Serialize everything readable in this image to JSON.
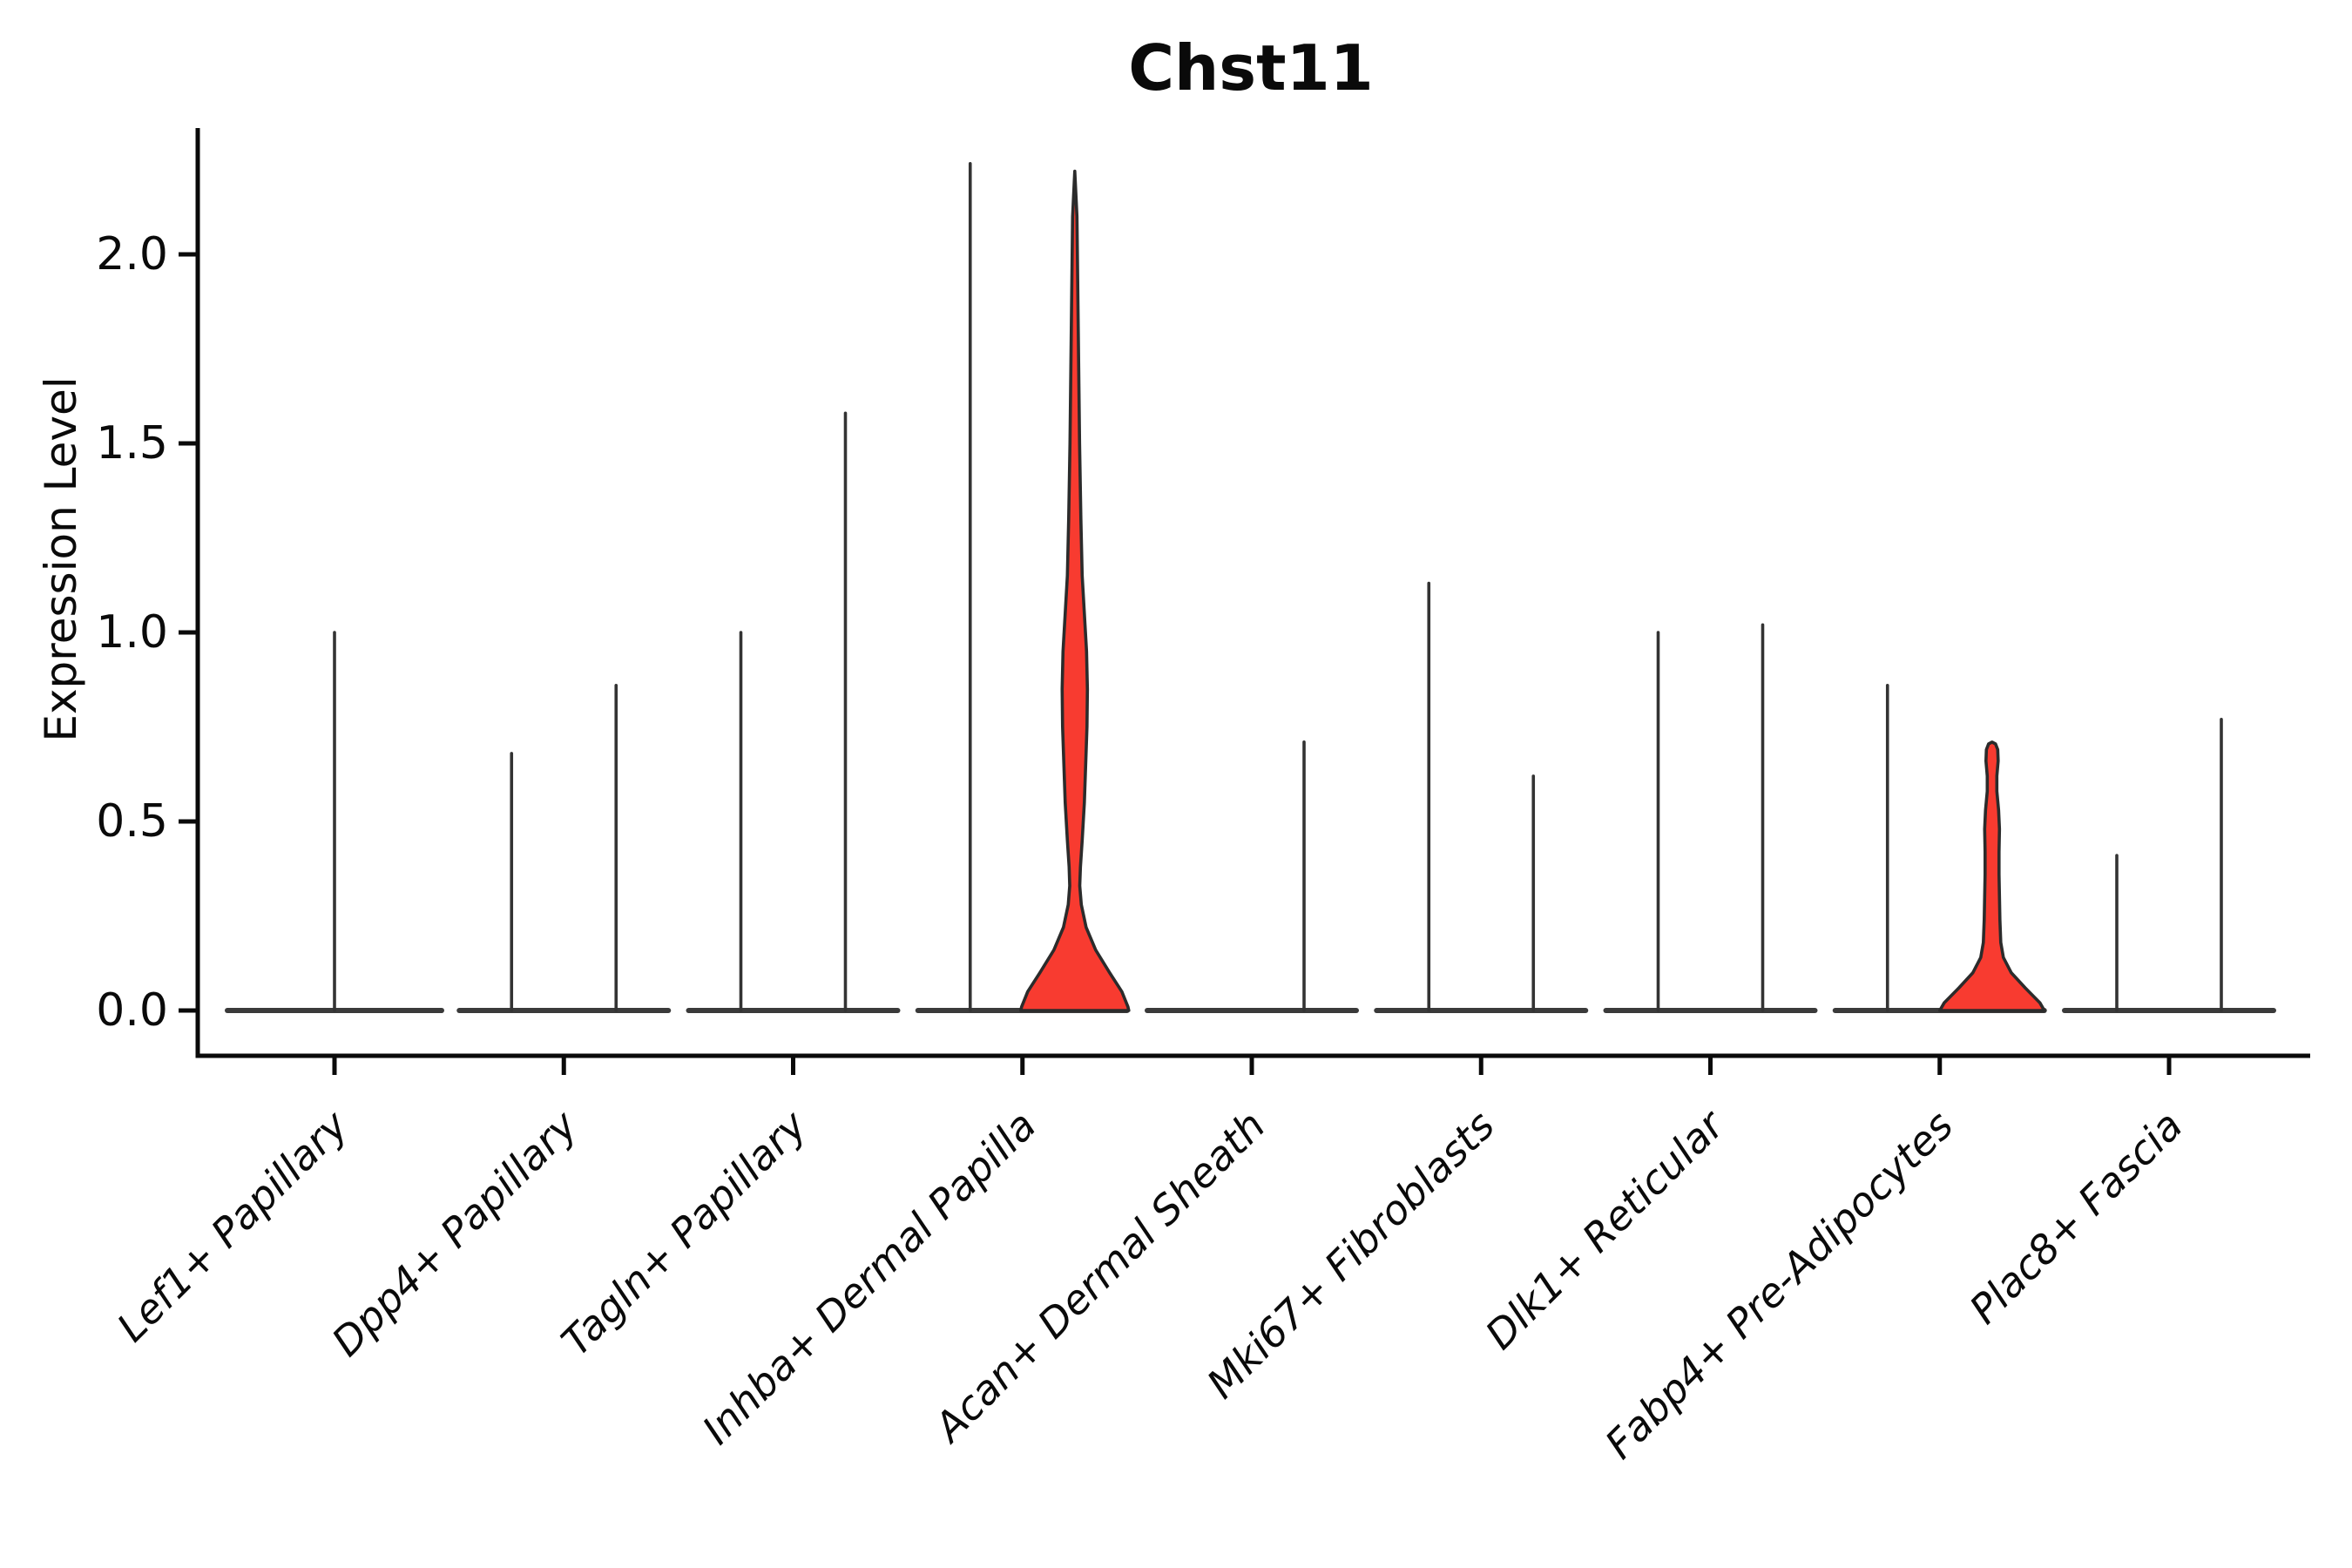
{
  "chart_data": {
    "type": "violin",
    "title": "Chst11",
    "xlabel": "",
    "ylabel": "Expression Level",
    "yticks": [
      "0.0",
      "0.5",
      "1.0",
      "1.5",
      "2.0"
    ],
    "ytick_values": [
      0,
      0.5,
      1,
      1.5,
      2
    ],
    "ylim": [
      -0.12,
      2.33
    ],
    "grid": false,
    "legend": "none",
    "categories": [
      {
        "label": "Lef1+ Papillary",
        "violins": [
          {
            "pos": "center",
            "max": 1.0,
            "type": "spike"
          }
        ]
      },
      {
        "label": "Dpp4+ Papillary",
        "violins": [
          {
            "pos": "left",
            "max": 0.68,
            "type": "spike"
          },
          {
            "pos": "right",
            "max": 0.86,
            "type": "spike"
          }
        ]
      },
      {
        "label": "Tagln+ Papillary",
        "violins": [
          {
            "pos": "left",
            "max": 1.0,
            "type": "spike"
          },
          {
            "pos": "right",
            "max": 1.58,
            "type": "spike"
          }
        ]
      },
      {
        "label": "Inhba+ Dermal Papilla",
        "violins": [
          {
            "pos": "left",
            "max": 2.24,
            "type": "spike"
          },
          {
            "pos": "right",
            "max": 2.22,
            "type": "filled",
            "profile": [
              [
                2.22,
                0
              ],
              [
                2.1,
                2.5
              ],
              [
                1.9,
                3.5
              ],
              [
                1.7,
                4.5
              ],
              [
                1.5,
                5.5
              ],
              [
                1.3,
                7
              ],
              [
                1.15,
                8.5
              ],
              [
                1.05,
                11
              ],
              [
                0.95,
                13.5
              ],
              [
                0.85,
                14.5
              ],
              [
                0.75,
                14
              ],
              [
                0.65,
                12.5
              ],
              [
                0.55,
                11
              ],
              [
                0.45,
                8.5
              ],
              [
                0.38,
                6.5
              ],
              [
                0.33,
                5.8
              ],
              [
                0.28,
                7.5
              ],
              [
                0.22,
                13
              ],
              [
                0.16,
                24
              ],
              [
                0.1,
                40
              ],
              [
                0.05,
                54
              ],
              [
                0.01,
                61
              ],
              [
                0.0,
                62
              ]
            ]
          }
        ]
      },
      {
        "label": "Acan+ Dermal Sheath",
        "violins": [
          {
            "pos": "right",
            "max": 0.71,
            "type": "spike"
          }
        ]
      },
      {
        "label": "Mki67+ Fibroblasts",
        "violins": [
          {
            "pos": "left",
            "max": 1.13,
            "type": "spike"
          },
          {
            "pos": "right",
            "max": 0.62,
            "type": "spike"
          }
        ]
      },
      {
        "label": "Dlk1+ Reticular",
        "violins": [
          {
            "pos": "left",
            "max": 1.0,
            "type": "spike"
          },
          {
            "pos": "right",
            "max": 1.02,
            "type": "spike"
          }
        ]
      },
      {
        "label": "Fabp4+ Pre-Adipocytes",
        "violins": [
          {
            "pos": "left",
            "max": 0.86,
            "type": "spike"
          },
          {
            "pos": "right",
            "max": 0.71,
            "type": "filled",
            "profile": [
              [
                0.71,
                0
              ],
              [
                0.705,
                4
              ],
              [
                0.69,
                6.5
              ],
              [
                0.66,
                7
              ],
              [
                0.62,
                5.5
              ],
              [
                0.58,
                5.5
              ],
              [
                0.53,
                7.5
              ],
              [
                0.48,
                8.5
              ],
              [
                0.42,
                8
              ],
              [
                0.36,
                8
              ],
              [
                0.3,
                8.5
              ],
              [
                0.24,
                9
              ],
              [
                0.18,
                10
              ],
              [
                0.14,
                13
              ],
              [
                0.1,
                22
              ],
              [
                0.06,
                38
              ],
              [
                0.02,
                55
              ],
              [
                0.0,
                60
              ]
            ]
          }
        ]
      },
      {
        "label": "Plac8+ Fascia",
        "violins": [
          {
            "pos": "left",
            "max": 0.41,
            "type": "spike"
          },
          {
            "pos": "right",
            "max": 0.77,
            "type": "spike"
          }
        ]
      }
    ],
    "colors": {
      "fill_red": "#F83B30",
      "violin_outline": "#2b2b2b",
      "spike": "#333333",
      "baseline": "#3a3a3a",
      "axis": "#0a0a0a",
      "background": "#ffffff"
    }
  }
}
